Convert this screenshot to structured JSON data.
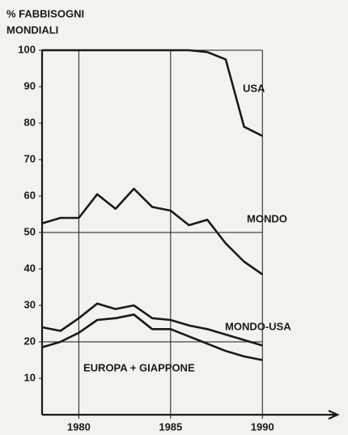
{
  "chart_data": {
    "type": "line",
    "ylabel": [
      "% FABBISOGNI",
      "MONDIALI"
    ],
    "x": [
      1978,
      1979,
      1980,
      1981,
      1982,
      1983,
      1984,
      1985,
      1986,
      1987,
      1988,
      1989,
      1990
    ],
    "series": [
      {
        "name": "USA",
        "color": "#1a1a1a",
        "values": [
          100,
          100,
          100,
          100,
          100,
          100,
          100,
          100,
          100,
          99.5,
          97.5,
          79,
          76.5
        ]
      },
      {
        "name": "MONDO",
        "color": "#1a1a1a",
        "values": [
          52.5,
          54,
          54,
          60.5,
          56.5,
          62,
          57,
          56,
          52,
          53.5,
          47,
          42,
          38.5
        ]
      },
      {
        "name": "MONDO-USA",
        "color": "#1a1a1a",
        "values": [
          24,
          23,
          26.5,
          30.5,
          29,
          30,
          26.5,
          26,
          24.5,
          23.5,
          22,
          20.5,
          19
        ]
      },
      {
        "name": "EUROPA + GIAPPONE",
        "color": "#1a1a1a",
        "values": [
          18.5,
          20,
          22.5,
          26,
          26.5,
          27.5,
          23.5,
          23.5,
          21.5,
          19.5,
          17.5,
          16,
          15
        ]
      }
    ],
    "xlim": [
      1978,
      1994
    ],
    "ylim": [
      0,
      100
    ],
    "xticks": [
      1980,
      1985,
      1990
    ],
    "yticks": [
      10,
      20,
      30,
      40,
      50,
      60,
      70,
      80,
      90,
      100
    ],
    "ygrid": [
      20,
      50,
      100
    ],
    "xgrid": true
  }
}
